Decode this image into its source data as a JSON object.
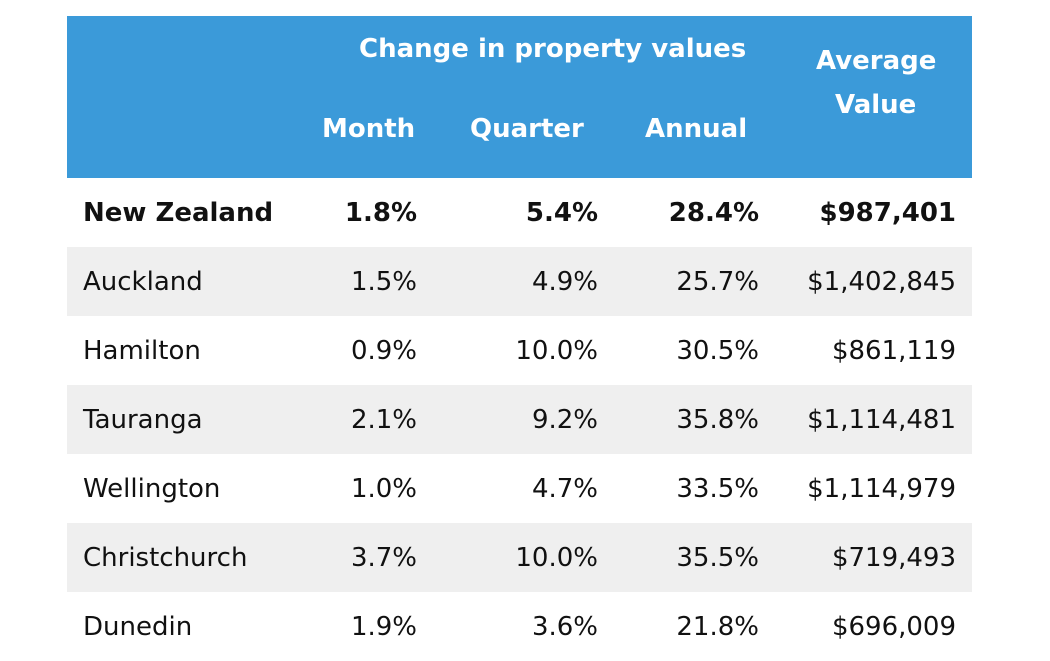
{
  "header": {
    "group_title": "Change in property values",
    "col_month": "Month",
    "col_quarter": "Quarter",
    "col_annual": "Annual",
    "col_avg_line1": "Average",
    "col_avg_line2": "Value"
  },
  "rows": [
    {
      "region": "New Zealand",
      "month": "1.8%",
      "quarter": "5.4%",
      "annual": "28.4%",
      "average": "$987,401"
    },
    {
      "region": "Auckland",
      "month": "1.5%",
      "quarter": "4.9%",
      "annual": "25.7%",
      "average": "$1,402,845"
    },
    {
      "region": "Hamilton",
      "month": "0.9%",
      "quarter": "10.0%",
      "annual": "30.5%",
      "average": "$861,119"
    },
    {
      "region": "Tauranga",
      "month": "2.1%",
      "quarter": "9.2%",
      "annual": "35.8%",
      "average": "$1,114,481"
    },
    {
      "region": "Wellington",
      "month": "1.0%",
      "quarter": "4.7%",
      "annual": "33.5%",
      "average": "$1,114,979"
    },
    {
      "region": "Christchurch",
      "month": "3.7%",
      "quarter": "10.0%",
      "annual": "35.5%",
      "average": "$719,493"
    },
    {
      "region": "Dunedin",
      "month": "1.9%",
      "quarter": "3.6%",
      "annual": "21.8%",
      "average": "$696,009"
    }
  ],
  "colors": {
    "header_bg": "#3b9ad9",
    "header_text": "#ffffff",
    "shaded_row_bg": "#efefef"
  }
}
